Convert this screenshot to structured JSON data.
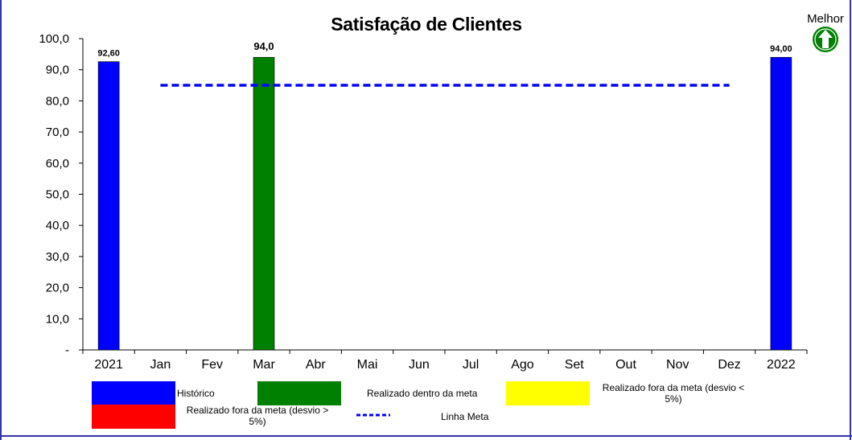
{
  "chart_data": {
    "type": "bar",
    "title": "Satisfação de Clientes",
    "better_label": "Melhor",
    "better_direction": "up",
    "categories": [
      "2021",
      "Jan",
      "Fev",
      "Mar",
      "Abr",
      "Mai",
      "Jun",
      "Jul",
      "Ago",
      "Set",
      "Out",
      "Nov",
      "Dez",
      "2022"
    ],
    "y_ticks": [
      "-",
      "10,0",
      "20,0",
      "30,0",
      "40,0",
      "50,0",
      "60,0",
      "70,0",
      "80,0",
      "90,0",
      "100,0"
    ],
    "ylim": [
      0,
      100
    ],
    "bars": [
      {
        "category": "2021",
        "value": 92.6,
        "label": "92,60",
        "series": "Histórico",
        "color": "#0000ff"
      },
      {
        "category": "Mar",
        "value": 94.0,
        "label": "94,0",
        "series": "Realizado dentro da meta",
        "color": "#008000"
      },
      {
        "category": "2022",
        "value": 94.0,
        "label": "94,00",
        "series": "Histórico",
        "color": "#0000ff"
      }
    ],
    "target_line": {
      "name": "Linha Meta",
      "value": 85,
      "from": "Jan",
      "to": "Dez",
      "color": "#0000ff"
    },
    "legend": [
      {
        "name": "Histórico",
        "color": "#0000ff"
      },
      {
        "name": "Realizado dentro da meta",
        "color": "#008000"
      },
      {
        "name": "Realizado fora da meta (desvio < 5%)",
        "color": "#ffff00"
      },
      {
        "name": "Realizado fora da meta (desvio > 5%)",
        "color": "#ff0000"
      },
      {
        "name": "Linha Meta",
        "color": "#0000ff"
      }
    ],
    "grid": false,
    "legend_position": "bottom"
  }
}
